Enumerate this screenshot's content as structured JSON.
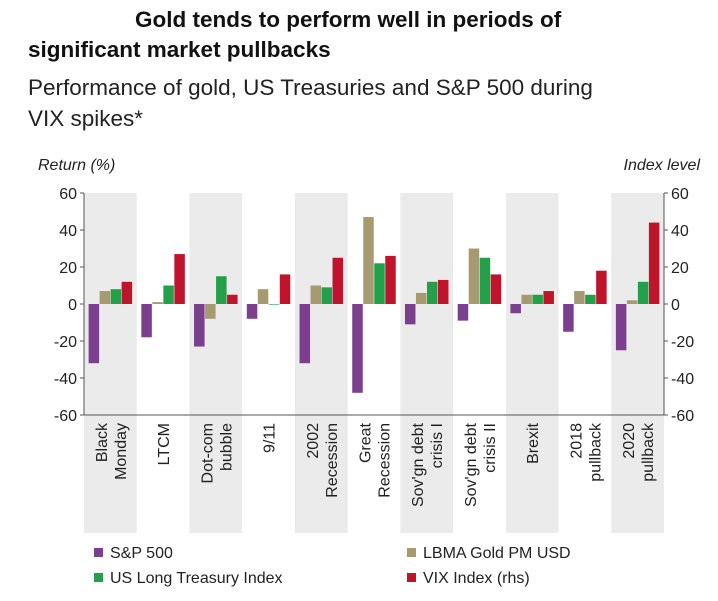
{
  "chart_data": {
    "type": "bar",
    "title": "Gold tends to perform well in periods of significant market pullbacks",
    "title_lines": [
      "Gold tends to perform well in periods of",
      "significant market pullbacks"
    ],
    "subtitle": "Performance of gold, US Treasuries and S&P 500 during VIX spikes*",
    "subtitle_lines": [
      "Performance of gold, US Treasuries and S&P 500 during",
      "VIX spikes*"
    ],
    "ylabel_left": "Return (%)",
    "ylabel_right": "Index level",
    "ylim": [
      -60,
      60
    ],
    "yticks": [
      -60,
      -40,
      -20,
      0,
      20,
      40,
      60
    ],
    "grid": false,
    "shaded_alternate_categories": true,
    "legend_position": "bottom",
    "categories": [
      [
        "Black",
        "Monday"
      ],
      [
        "LTCM"
      ],
      [
        "Dot-com",
        "bubble"
      ],
      [
        "9/11"
      ],
      [
        "2002",
        "Recession"
      ],
      [
        "Great",
        "Recession"
      ],
      [
        "Sov'gn debt",
        "crisis I"
      ],
      [
        "Sov'gn debt",
        "crisis II"
      ],
      [
        "Brexit"
      ],
      [
        "2018",
        "pullback"
      ],
      [
        "2020",
        "pullback"
      ]
    ],
    "series": [
      {
        "name": "S&P 500",
        "color": "#7B3F8E",
        "values": [
          -32,
          -18,
          -23,
          -8,
          -32,
          -48,
          -11,
          -9,
          -5,
          -15,
          -25
        ]
      },
      {
        "name": "LBMA Gold PM USD",
        "color": "#A89A70",
        "values": [
          7,
          1,
          -8,
          8,
          10,
          47,
          6,
          30,
          5,
          7,
          2
        ]
      },
      {
        "name": "US Long Treasury Index",
        "color": "#24A04A",
        "values": [
          8,
          10,
          15,
          0,
          9,
          22,
          12,
          25,
          5,
          5,
          12
        ]
      },
      {
        "name": "VIX Index (rhs)",
        "color": "#C0142C",
        "values": [
          12,
          27,
          5,
          16,
          25,
          26,
          13,
          16,
          7,
          18,
          44
        ]
      }
    ]
  }
}
